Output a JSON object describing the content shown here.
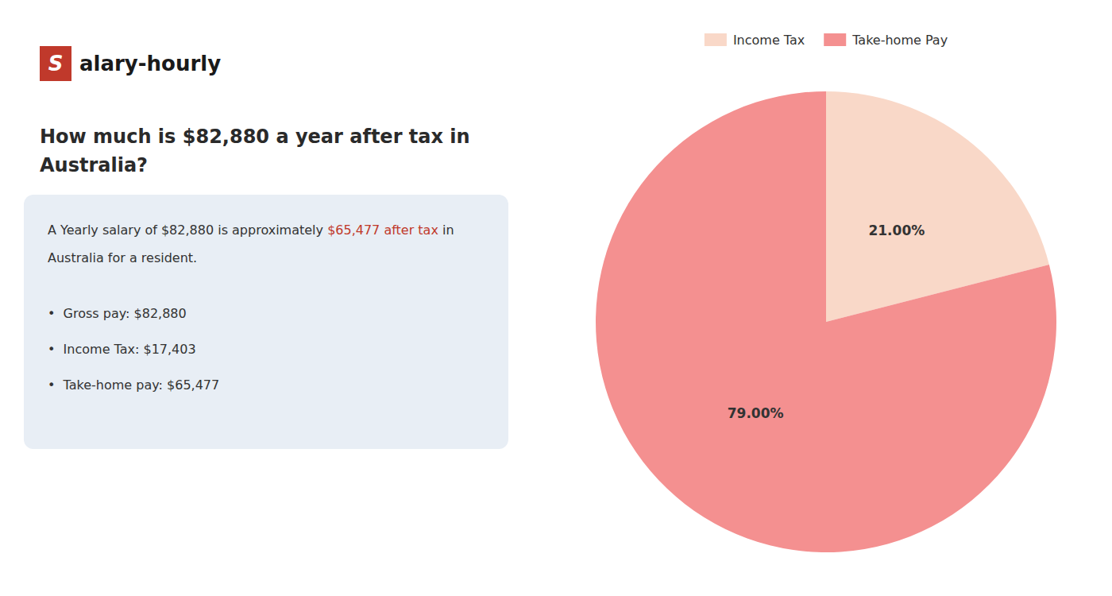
{
  "chart_data": {
    "type": "pie",
    "title": "How much is $82,880 a year after tax in\nAustralia?",
    "categories": [
      "Income Tax",
      "Take-home Pay"
    ],
    "values": [
      21.0,
      79.0
    ],
    "value_labels": [
      "21.00%",
      "79.00%"
    ],
    "colors": [
      "#f9d8c8",
      "#f49090"
    ],
    "data_labels": true,
    "legend": "top",
    "annotations": [
      {
        "text": "S",
        "color": "#c0392b"
      },
      {
        "text": "alary-hourly"
      },
      {
        "text": "A Yearly salary of $82,880 is approximately "
      },
      {
        "text": "$65,477 after tax",
        "color": "#c0392b"
      },
      {
        "text": " in"
      },
      {
        "text": "Australia for a resident."
      },
      {
        "text": "•  Gross pay: $82,880"
      },
      {
        "text": "•  Income Tax: $17,403"
      },
      {
        "text": "•  Take-home pay: $65,477"
      }
    ]
  }
}
